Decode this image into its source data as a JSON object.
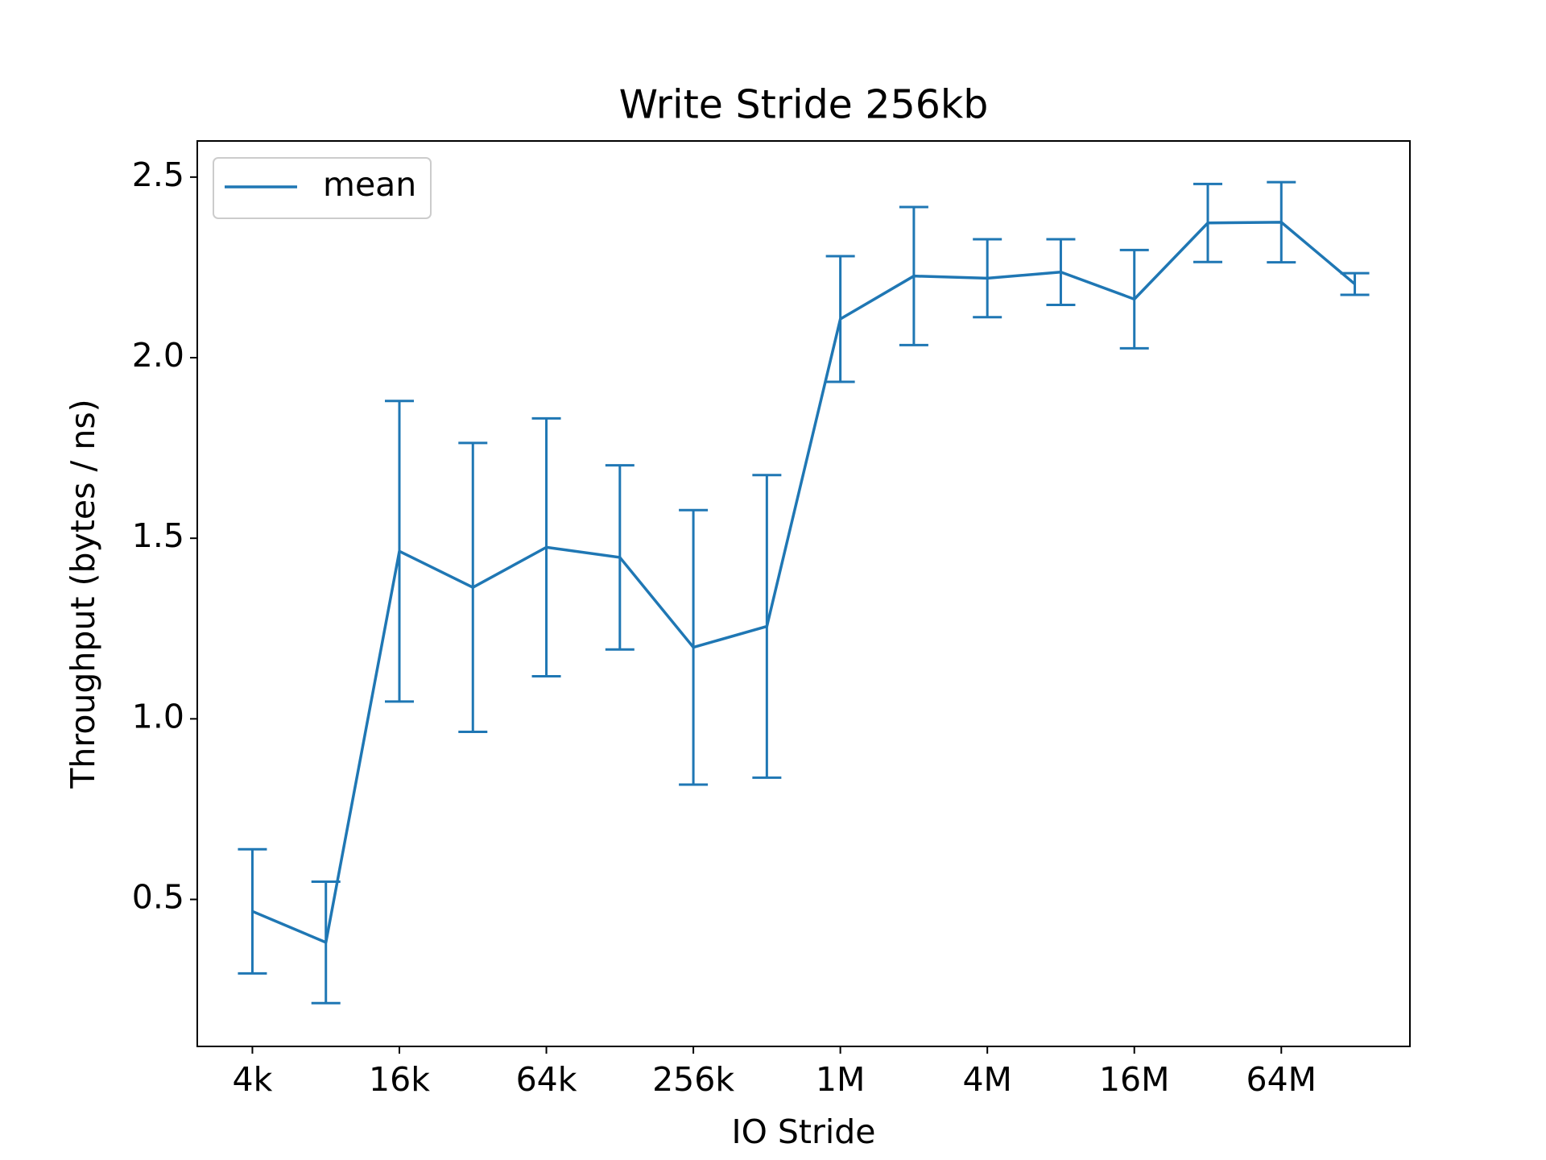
{
  "chart_data": {
    "type": "line",
    "title": "Write Stride 256kb",
    "x_label": "IO Stride",
    "y_label": "Throughput (bytes / ns)",
    "categories": [
      "4k",
      null,
      "16k",
      null,
      "64k",
      null,
      "256k",
      null,
      "1M",
      null,
      "4M",
      null,
      "16M",
      null,
      "64M",
      null
    ],
    "series": [
      {
        "name": "mean",
        "color": "#1f77b4",
        "values": [
          0.467,
          0.381,
          1.464,
          1.364,
          1.475,
          1.447,
          1.198,
          1.256,
          2.107,
          2.226,
          2.22,
          2.237,
          2.162,
          2.373,
          2.375,
          2.204
        ],
        "errors": [
          0.172,
          0.168,
          0.416,
          0.4,
          0.357,
          0.255,
          0.38,
          0.419,
          0.174,
          0.191,
          0.108,
          0.091,
          0.136,
          0.108,
          0.111,
          0.03
        ]
      }
    ],
    "ylim": [
      0.093,
      2.6
    ],
    "yticks": [
      0.5,
      {
        "value": 1,
        "label": "1.0"
      },
      1.5,
      {
        "value": 2,
        "label": "2.0"
      },
      2.5
    ],
    "legend": "upper left"
  }
}
